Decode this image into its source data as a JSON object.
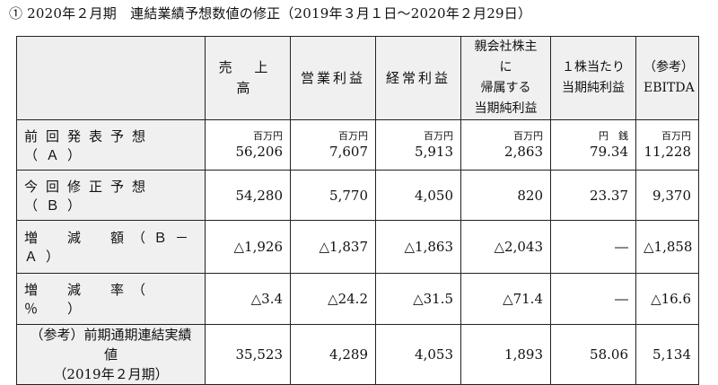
{
  "title": "① 2020年２月期　連結業績予想数値の修正（2019年３月１日～2020年２月29日）",
  "columns": [
    {
      "label": "売 上 高"
    },
    {
      "label": "営業利益"
    },
    {
      "label": "経常利益"
    },
    {
      "label_lines": [
        "親会社株主に",
        "帰属する",
        "当期純利益"
      ]
    },
    {
      "label_lines": [
        "１株当たり",
        "当期純利益"
      ]
    },
    {
      "label_lines": [
        "（参考）",
        "EBITDA"
      ]
    }
  ],
  "rows": [
    {
      "label": "前回発表予想（Ａ）",
      "units": [
        "百万円",
        "百万円",
        "百万円",
        "百万円",
        "円　銭",
        "百万円"
      ],
      "values": [
        "56,206",
        "7,607",
        "5,913",
        "2,863",
        "79.34",
        "11,228"
      ]
    },
    {
      "label": "今回修正予想（Ｂ）",
      "values": [
        "54,280",
        "5,770",
        "4,050",
        "820",
        "23.37",
        "9,370"
      ]
    },
    {
      "label": "増　減　額（Ｂ－Ａ）",
      "values": [
        "△1,926",
        "△1,837",
        "△1,863",
        "△2,043",
        "―",
        "△1,858"
      ]
    },
    {
      "label": "増　減　率（　％　）",
      "values": [
        "△3.4",
        "△24.2",
        "△31.5",
        "△71.4",
        "―",
        "△16.6"
      ]
    },
    {
      "label_lines": [
        "（参考）前期通期連結実績値",
        "（2019年２月期）"
      ],
      "values": [
        "35,523",
        "4,289",
        "4,053",
        "1,893",
        "58.06",
        "5,134"
      ]
    }
  ]
}
